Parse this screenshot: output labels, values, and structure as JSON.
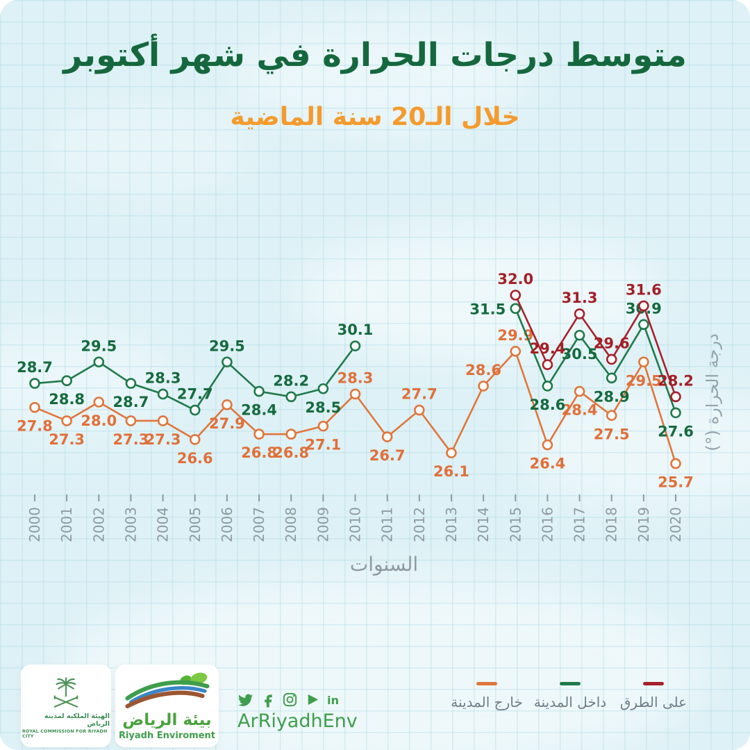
{
  "header": {
    "title": "متوسط درجات الحرارة في شهر أكتوبر",
    "subtitle": "خلال الـ20 سنة الماضية"
  },
  "chart_data": {
    "type": "line",
    "x": [
      "2000",
      "2001",
      "2002",
      "2003",
      "2004",
      "2005",
      "2006",
      "2007",
      "2008",
      "2009",
      "2010",
      "2011",
      "2012",
      "2013",
      "2014",
      "2015",
      "2016",
      "2017",
      "2018",
      "2019",
      "2020"
    ],
    "xlabel": "السنوات",
    "ylabel": "درجة الحرارة (°)",
    "ylim": [
      25.0,
      32.5
    ],
    "grid": "faint square grid over light-blue cloudy background",
    "legend_position": "bottom-right",
    "marker_style": "open circle, white fill, colored stroke",
    "series": [
      {
        "key": "outside-city",
        "name": "خارج المدينة",
        "color": "#e0763c",
        "label_color": "#e0703a",
        "values": [
          27.8,
          27.3,
          28.0,
          27.3,
          27.3,
          26.6,
          27.9,
          26.8,
          26.8,
          27.1,
          28.3,
          26.7,
          27.7,
          26.1,
          28.6,
          29.9,
          26.4,
          28.4,
          27.5,
          29.5,
          25.7
        ],
        "label_pos": [
          "below",
          "below",
          "below",
          "below",
          "below",
          "below",
          "below",
          "below",
          "below",
          "below",
          "above",
          "below",
          "above",
          "below",
          "above",
          "above",
          "below",
          "below",
          "below",
          "below",
          "below"
        ]
      },
      {
        "key": "inside-city",
        "name": "داخل المدينة",
        "color": "#1e7a4a",
        "label_color": "#156a3e",
        "values": [
          28.7,
          28.8,
          29.5,
          28.7,
          28.3,
          27.7,
          29.5,
          28.4,
          28.2,
          28.5,
          30.1,
          null,
          null,
          null,
          null,
          31.5,
          28.6,
          30.5,
          28.9,
          30.9,
          27.6
        ],
        "label_pos": [
          "above",
          "below",
          "above",
          "below",
          "above",
          "above",
          "above",
          "below",
          "above",
          "below",
          "above",
          null,
          null,
          null,
          null,
          "left",
          "below",
          "below",
          "below",
          "above",
          "below"
        ]
      },
      {
        "key": "on-roads",
        "name": "على الطرق",
        "color": "#a6212b",
        "label_color": "#a32026",
        "values": [
          null,
          null,
          null,
          null,
          null,
          null,
          null,
          null,
          null,
          null,
          null,
          null,
          null,
          null,
          null,
          32.0,
          29.4,
          31.3,
          29.6,
          31.6,
          28.2
        ],
        "label_pos": [
          null,
          null,
          null,
          null,
          null,
          null,
          null,
          null,
          null,
          null,
          null,
          null,
          null,
          null,
          null,
          "above",
          "above",
          "above",
          "above",
          "above",
          "above"
        ]
      }
    ]
  },
  "footer": {
    "rcrc_logo": {
      "arabic": "الهيئة الملكية لمدينة الرياض",
      "english": "ROYAL COMMISSION FOR RIYADH CITY"
    },
    "env_logo": {
      "arabic": "بيئة الرياض",
      "english": "Riyadh Enviroment"
    },
    "social": {
      "handle": "ArRiyadhEnv",
      "icons": [
        "twitter-icon",
        "facebook-icon",
        "instagram-icon",
        "youtube-icon",
        "linkedin-icon"
      ]
    }
  },
  "colors": {
    "title_green": "#15683d",
    "subtitle_orange": "#f49b2e",
    "background": "#def1f6",
    "axis_gray": "#8e9aa0",
    "legend_label_gray": "#6f7e85",
    "logo_green": "#3f9e4c"
  }
}
